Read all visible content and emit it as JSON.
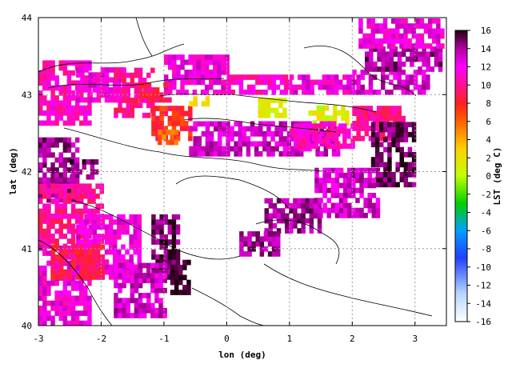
{
  "chart_data": {
    "type": "heatmap",
    "title": "",
    "xlabel": "lon (deg)",
    "ylabel": "lat (deg)",
    "colorbar_label": "LST (deg C)",
    "xlim": [
      -3,
      3.5
    ],
    "ylim": [
      40,
      44
    ],
    "clim": [
      -16,
      16
    ],
    "x_ticks": [
      -3,
      -2,
      -1,
      0,
      1,
      2,
      3
    ],
    "y_ticks": [
      40,
      41,
      42,
      43,
      44
    ],
    "colorbar_ticks": [
      16,
      14,
      12,
      10,
      8,
      6,
      4,
      2,
      0,
      -2,
      -4,
      -6,
      -8,
      -10,
      -12,
      -14,
      -16
    ],
    "grid": true,
    "colormap": [
      {
        "v": -16,
        "c": "#ffffff"
      },
      {
        "v": -13,
        "c": "#b8d8ff"
      },
      {
        "v": -9,
        "c": "#2040ff"
      },
      {
        "v": -6,
        "c": "#00a0ff"
      },
      {
        "v": -3,
        "c": "#00d000"
      },
      {
        "v": 0,
        "c": "#c0ff00"
      },
      {
        "v": 3,
        "c": "#ffd000"
      },
      {
        "v": 6,
        "c": "#ff6000"
      },
      {
        "v": 8,
        "c": "#ff2020"
      },
      {
        "v": 10,
        "c": "#ff1090"
      },
      {
        "v": 12,
        "c": "#ff00ff"
      },
      {
        "v": 14,
        "c": "#b000a0"
      },
      {
        "v": 16,
        "c": "#200010"
      }
    ],
    "regions": [
      {
        "lon": [
          -3.0,
          -2.2
        ],
        "lat": [
          42.6,
          43.4
        ],
        "lst": 11
      },
      {
        "lon": [
          -2.4,
          -1.6
        ],
        "lat": [
          42.9,
          43.3
        ],
        "lst": 12
      },
      {
        "lon": [
          -1.8,
          -1.2
        ],
        "lat": [
          42.7,
          43.3
        ],
        "lst": 10
      },
      {
        "lon": [
          -1.0,
          0.0
        ],
        "lat": [
          43.0,
          43.5
        ],
        "lst": 12
      },
      {
        "lon": [
          0.0,
          1.0
        ],
        "lat": [
          43.0,
          43.2
        ],
        "lst": 11
      },
      {
        "lon": [
          1.0,
          2.0
        ],
        "lat": [
          43.0,
          43.2
        ],
        "lst": 12
      },
      {
        "lon": [
          2.0,
          3.2
        ],
        "lat": [
          43.0,
          43.3
        ],
        "lst": 13
      },
      {
        "lon": [
          2.2,
          3.4
        ],
        "lat": [
          43.3,
          43.6
        ],
        "lst": 14
      },
      {
        "lon": [
          2.1,
          3.4
        ],
        "lat": [
          43.6,
          43.95
        ],
        "lst": 12
      },
      {
        "lon": [
          -1.4,
          -0.9
        ],
        "lat": [
          42.9,
          43.1
        ],
        "lst": 9
      },
      {
        "lon": [
          -1.2,
          -0.6
        ],
        "lat": [
          42.4,
          42.8
        ],
        "lst": 8
      },
      {
        "lon": [
          -1.1,
          -0.8
        ],
        "lat": [
          42.35,
          42.5
        ],
        "lst": 6
      },
      {
        "lon": [
          -0.6,
          -0.3
        ],
        "lat": [
          42.85,
          42.95
        ],
        "lst": 2
      },
      {
        "lon": [
          0.5,
          0.9
        ],
        "lat": [
          42.7,
          42.9
        ],
        "lst": 1
      },
      {
        "lon": [
          1.3,
          1.9
        ],
        "lat": [
          42.6,
          42.8
        ],
        "lst": 1
      },
      {
        "lon": [
          -0.6,
          1.8
        ],
        "lat": [
          42.2,
          42.6
        ],
        "lst": 13
      },
      {
        "lon": [
          1.0,
          2.0
        ],
        "lat": [
          42.3,
          42.6
        ],
        "lst": 11
      },
      {
        "lon": [
          2.0,
          2.8
        ],
        "lat": [
          42.4,
          42.8
        ],
        "lst": 10
      },
      {
        "lon": [
          2.3,
          3.0
        ],
        "lat": [
          41.8,
          42.6
        ],
        "lst": 15
      },
      {
        "lon": [
          1.4,
          2.4
        ],
        "lat": [
          41.4,
          42.0
        ],
        "lst": 13
      },
      {
        "lon": [
          0.6,
          1.5
        ],
        "lat": [
          41.2,
          41.6
        ],
        "lst": 14
      },
      {
        "lon": [
          -3.0,
          -2.4
        ],
        "lat": [
          41.6,
          42.4
        ],
        "lst": 14
      },
      {
        "lon": [
          -2.5,
          -2.1
        ],
        "lat": [
          41.9,
          42.1
        ],
        "lst": 15
      },
      {
        "lon": [
          -3.0,
          -2.0
        ],
        "lat": [
          41.0,
          41.8
        ],
        "lst": 10
      },
      {
        "lon": [
          -2.4,
          -1.4
        ],
        "lat": [
          40.6,
          41.4
        ],
        "lst": 12
      },
      {
        "lon": [
          -1.2,
          -0.8
        ],
        "lat": [
          40.6,
          41.4
        ],
        "lst": 15
      },
      {
        "lon": [
          -0.9,
          -0.6
        ],
        "lat": [
          40.4,
          40.8
        ],
        "lst": 16
      },
      {
        "lon": [
          -3.0,
          -2.2
        ],
        "lat": [
          40.0,
          41.0
        ],
        "lst": 12
      },
      {
        "lon": [
          -2.8,
          -2.0
        ],
        "lat": [
          40.6,
          41.0
        ],
        "lst": 9
      },
      {
        "lon": [
          -1.8,
          -1.0
        ],
        "lat": [
          40.1,
          40.8
        ],
        "lst": 13
      },
      {
        "lon": [
          0.2,
          0.8
        ],
        "lat": [
          40.9,
          41.2
        ],
        "lst": 14
      }
    ]
  }
}
